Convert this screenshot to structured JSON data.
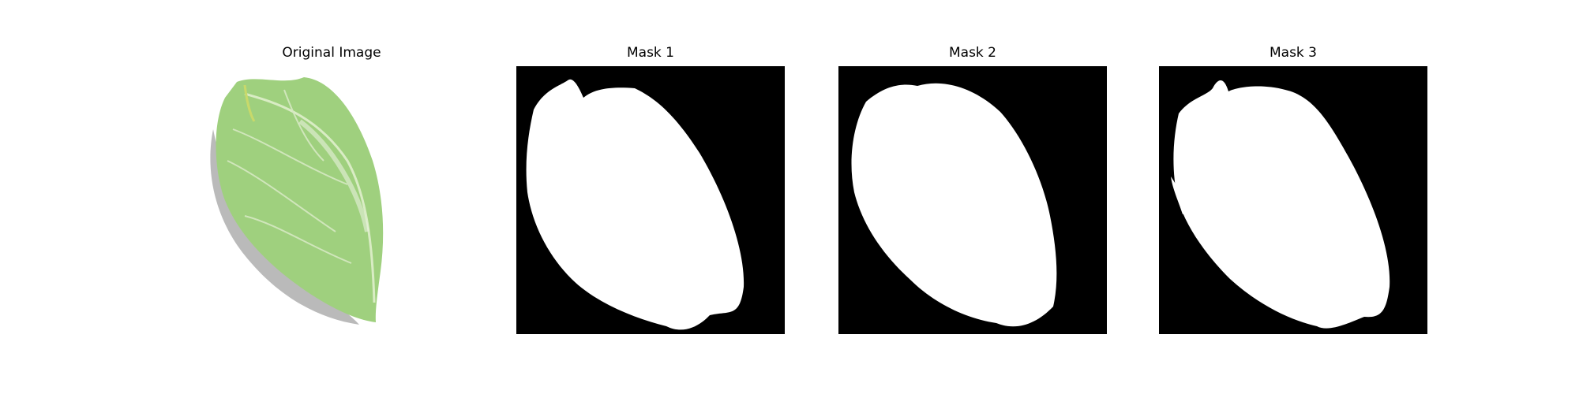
{
  "figure": {
    "panels": [
      {
        "title": "Original Image",
        "image": "leaf-photo"
      },
      {
        "title": "Mask 1",
        "image": "leaf-mask"
      },
      {
        "title": "Mask 2",
        "image": "leaf-mask"
      },
      {
        "title": "Mask 3",
        "image": "leaf-mask"
      }
    ],
    "colors": {
      "mask_background": "#000000",
      "mask_foreground": "#ffffff",
      "leaf": "#9ccb7a",
      "leaf_vein": "#e8f0dc",
      "leaf_shadow": "#a0a0a0"
    }
  }
}
